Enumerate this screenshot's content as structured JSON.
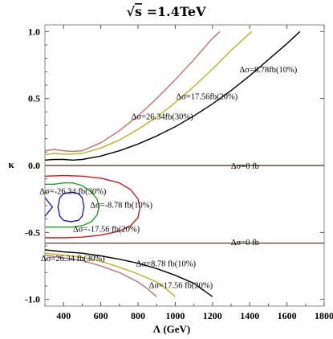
{
  "chart_data": {
    "type": "line",
    "title": "√s =1.4TeV",
    "title_sqrt": "√",
    "title_s": "s",
    "title_rest": " =1.4TeV",
    "xlabel": "Λ (GeV)",
    "ylabel": "κ",
    "xlim": [
      300,
      1800
    ],
    "ylim": [
      -1.05,
      1.05
    ],
    "xticks": [
      400,
      600,
      800,
      1000,
      1200,
      1400,
      1600,
      1800
    ],
    "yticks": [
      -1.0,
      -0.5,
      0.0,
      0.5,
      1.0
    ],
    "ytick_labels": [
      "-1.0",
      "-0.5",
      "0.0",
      "0.5",
      "1.0"
    ],
    "grid": false,
    "colors": {
      "black": "#000000",
      "olive": "#b9b322",
      "rose": "#c56f74",
      "red": "#c81e1e",
      "green": "#1fa21f",
      "blue": "#1f1fb9",
      "hline": "#6b4a3a"
    },
    "series": [
      {
        "color": "black",
        "x": [
          300,
          350,
          400,
          450,
          500,
          600,
          700,
          800,
          900,
          1000,
          1100,
          1200,
          1300,
          1400,
          1500,
          1600,
          1670
        ],
        "y": [
          0.04,
          0.045,
          0.045,
          0.04,
          0.045,
          0.07,
          0.11,
          0.16,
          0.22,
          0.29,
          0.37,
          0.46,
          0.56,
          0.67,
          0.79,
          0.91,
          1.0
        ]
      },
      {
        "color": "olive",
        "x": [
          300,
          350,
          400,
          450,
          500,
          600,
          700,
          800,
          900,
          1000,
          1100,
          1200,
          1300,
          1410
        ],
        "y": [
          0.08,
          0.09,
          0.085,
          0.085,
          0.09,
          0.13,
          0.19,
          0.27,
          0.36,
          0.47,
          0.59,
          0.72,
          0.86,
          1.0
        ]
      },
      {
        "color": "rose",
        "x": [
          300,
          350,
          400,
          450,
          500,
          600,
          700,
          800,
          900,
          1000,
          1100,
          1200,
          1240
        ],
        "y": [
          0.11,
          0.12,
          0.11,
          0.105,
          0.11,
          0.17,
          0.26,
          0.37,
          0.5,
          0.64,
          0.79,
          0.95,
          1.0
        ]
      },
      {
        "color": "black",
        "x": [
          300,
          400,
          500,
          600,
          700,
          800,
          900,
          1000,
          1100,
          1150,
          1200
        ],
        "y": [
          -0.63,
          -0.645,
          -0.655,
          -0.675,
          -0.7,
          -0.73,
          -0.77,
          -0.82,
          -0.88,
          -0.93,
          -0.98
        ]
      },
      {
        "color": "olive",
        "x": [
          300,
          400,
          500,
          600,
          700,
          800,
          900,
          950,
          1000
        ],
        "y": [
          -0.655,
          -0.67,
          -0.685,
          -0.715,
          -0.76,
          -0.81,
          -0.87,
          -0.92,
          -0.98
        ]
      },
      {
        "color": "rose",
        "x": [
          300,
          400,
          500,
          600,
          700,
          800,
          850,
          900
        ],
        "y": [
          -0.67,
          -0.69,
          -0.71,
          -0.75,
          -0.8,
          -0.87,
          -0.92,
          -0.98
        ]
      },
      {
        "color": "red",
        "x": [
          300,
          400,
          500,
          600,
          700,
          760,
          800,
          810,
          800,
          760,
          700,
          600,
          500,
          400,
          300
        ],
        "y": [
          -0.08,
          -0.075,
          -0.08,
          -0.095,
          -0.13,
          -0.18,
          -0.25,
          -0.32,
          -0.39,
          -0.45,
          -0.49,
          -0.52,
          -0.535,
          -0.54,
          -0.54
        ]
      },
      {
        "color": "green",
        "x": [
          300,
          350,
          400,
          450,
          500,
          550,
          580,
          590,
          580,
          550,
          500,
          450,
          400,
          350,
          300
        ],
        "y": [
          -0.14,
          -0.14,
          -0.13,
          -0.13,
          -0.15,
          -0.2,
          -0.25,
          -0.31,
          -0.37,
          -0.42,
          -0.45,
          -0.46,
          -0.46,
          -0.46,
          -0.46
        ]
      },
      {
        "color": "blue",
        "x": [
          440,
          480,
          500,
          510,
          500,
          480,
          440,
          400,
          380,
          370,
          380,
          400,
          440
        ],
        "y": [
          -0.2,
          -0.21,
          -0.24,
          -0.31,
          -0.38,
          -0.41,
          -0.42,
          -0.41,
          -0.38,
          -0.31,
          -0.24,
          -0.21,
          -0.2
        ]
      },
      {
        "color": "blue",
        "x": [
          300,
          340,
          300
        ],
        "y": [
          -0.24,
          -0.31,
          -0.38
        ]
      },
      {
        "color": "hline",
        "x": [
          300,
          1800
        ],
        "y": [
          0.0,
          0.0
        ]
      },
      {
        "color": "hline",
        "x": [
          300,
          1800
        ],
        "y": [
          -0.58,
          -0.58
        ]
      }
    ],
    "annotations": [
      {
        "text": "Δσ=8.78fb(10%)",
        "x": 1500,
        "y": 0.72
      },
      {
        "text": "Δσ=17.56fb(20%)",
        "x": 1170,
        "y": 0.52
      },
      {
        "text": "Δσ=26.34fb(30%)",
        "x": 930,
        "y": 0.37
      },
      {
        "text": "Δσ=0 fb",
        "x": 1375,
        "y": 0.0
      },
      {
        "text": "Δσ=-26.34 fb(30%)",
        "x": 450,
        "y": -0.19
      },
      {
        "text": "Δσ=-8.78 fb(10%)",
        "x": 710,
        "y": -0.29
      },
      {
        "text": "Δσ=-17.56 fb(20%)",
        "x": 630,
        "y": -0.47
      },
      {
        "text": "Δσ=0 fb",
        "x": 1375,
        "y": -0.57
      },
      {
        "text": "Δσ=26.34 fb(30%)",
        "x": 450,
        "y": -0.69
      },
      {
        "text": "Δσ=8.78 fb(10%)",
        "x": 950,
        "y": -0.73
      },
      {
        "text": "Δσ=17.56 fb(20%)",
        "x": 1030,
        "y": -0.89
      }
    ]
  }
}
